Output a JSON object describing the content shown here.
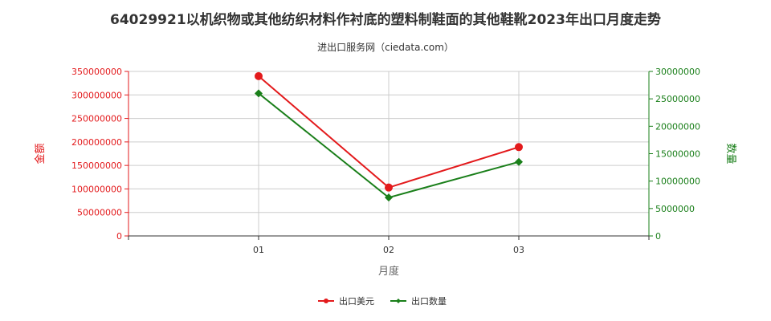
{
  "chart_data": {
    "type": "line",
    "title": "64029921以机织物或其他纺织材料作衬底的塑料制鞋面的其他鞋靴2023年出口月度走势",
    "subtitle": "进出口服务网（ciedata.com）",
    "xlabel": "月度",
    "ylabel_left": "金额",
    "ylabel_right": "数量",
    "categories": [
      "01",
      "02",
      "03"
    ],
    "ylim_left": [
      0,
      350000000
    ],
    "ylim_right": [
      0,
      30000000
    ],
    "yticks_left": [
      "0",
      "50000000",
      "100000000",
      "150000000",
      "200000000",
      "250000000",
      "300000000",
      "350000000"
    ],
    "yticks_right": [
      "0",
      "5000000",
      "10000000",
      "15000000",
      "20000000",
      "25000000",
      "30000000"
    ],
    "grid": true,
    "legend_position": "bottom",
    "series": [
      {
        "name": "出口美元",
        "axis": "left",
        "color": "#e31a1c",
        "marker": "circle",
        "values": [
          340000000,
          103000000,
          189000000
        ]
      },
      {
        "name": "出口数量",
        "axis": "right",
        "color": "#1a7f1a",
        "marker": "diamond",
        "values": [
          26000000,
          7000000,
          13500000
        ]
      }
    ],
    "colors": {
      "left_axis": "#e31a1c",
      "right_axis": "#1a7f1a",
      "grid": "#cccccc",
      "axis_line": "#333333"
    }
  }
}
